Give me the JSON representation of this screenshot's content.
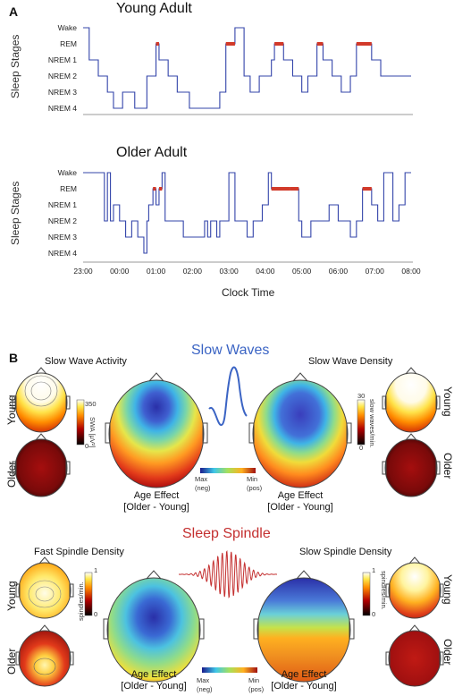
{
  "panelA": {
    "letter": "A",
    "young_title": "Young Adult",
    "older_title": "Older Adult",
    "ylabel": "Sleep Stages",
    "stages": [
      "Wake",
      "REM",
      "NREM 1",
      "NREM 2",
      "NREM 3",
      "NREM 4"
    ],
    "ticks": [
      "23:00",
      "00:00",
      "01:00",
      "02:00",
      "03:00",
      "04:00",
      "05:00",
      "06:00",
      "07:00",
      "08:00"
    ],
    "xlabel": "Clock Time",
    "hypnogram_color": "#3344aa",
    "rem_color": "#d23a2a"
  },
  "chart_data": [
    {
      "type": "line",
      "title": "Young Adult",
      "ylabel": "Sleep Stages",
      "ystates": [
        "Wake",
        "REM",
        "NREM 1",
        "NREM 2",
        "NREM 3",
        "NREM 4"
      ],
      "x": [
        "23:00",
        "23:10",
        "23:25",
        "23:40",
        "23:50",
        "00:05",
        "00:25",
        "00:45",
        "01:00",
        "01:05",
        "01:20",
        "01:35",
        "01:55",
        "02:15",
        "02:45",
        "02:55",
        "03:10",
        "03:25",
        "03:35",
        "03:50",
        "04:10",
        "04:15",
        "04:30",
        "04:45",
        "05:00",
        "05:10",
        "05:25",
        "05:35",
        "05:50",
        "06:05",
        "06:20",
        "06:30",
        "06:55",
        "07:10",
        "07:30",
        "08:00"
      ],
      "y": [
        "Wake",
        "NREM 1",
        "NREM 2",
        "NREM 3",
        "NREM 4",
        "NREM 3",
        "NREM 4",
        "NREM 2",
        "REM",
        "NREM 1",
        "NREM 2",
        "NREM 3",
        "NREM 4",
        "NREM 4",
        "NREM 3",
        "REM",
        "Wake",
        "NREM 2",
        "NREM 3",
        "NREM 2",
        "NREM 1",
        "REM",
        "NREM 1",
        "NREM 2",
        "NREM 3",
        "NREM 2",
        "REM",
        "NREM 1",
        "NREM 2",
        "NREM 3",
        "NREM 2",
        "REM",
        "NREM 1",
        "NREM 2",
        "NREM 2",
        "NREM 2"
      ]
    },
    {
      "type": "line",
      "title": "Older Adult",
      "ylabel": "Sleep Stages",
      "xlabel": "Clock Time",
      "ystates": [
        "Wake",
        "REM",
        "NREM 1",
        "NREM 2",
        "NREM 3",
        "NREM 4"
      ],
      "x": [
        "23:00",
        "23:35",
        "23:40",
        "23:45",
        "23:50",
        "00:00",
        "00:10",
        "00:20",
        "00:30",
        "00:40",
        "00:45",
        "00:48",
        "00:55",
        "01:00",
        "01:05",
        "01:10",
        "01:15",
        "01:30",
        "01:45",
        "02:20",
        "02:25",
        "02:30",
        "02:40",
        "02:45",
        "03:00",
        "03:10",
        "03:30",
        "03:40",
        "03:55",
        "04:05",
        "04:10",
        "04:40",
        "04:55",
        "05:00",
        "05:15",
        "05:30",
        "05:45",
        "06:00",
        "06:20",
        "06:30",
        "06:40",
        "06:55",
        "07:05",
        "07:15",
        "07:30",
        "07:40",
        "07:50",
        "08:00"
      ],
      "y": [
        "Wake",
        "NREM 2",
        "Wake",
        "NREM 2",
        "NREM 1",
        "NREM 2",
        "NREM 3",
        "NREM 2",
        "NREM 3",
        "NREM 4",
        "NREM 2",
        "NREM 1",
        "REM",
        "NREM 1",
        "REM",
        "Wake",
        "NREM 2",
        "NREM 2",
        "NREM 3",
        "NREM 2",
        "NREM 3",
        "NREM 2",
        "NREM 3",
        "NREM 2",
        "Wake",
        "NREM 2",
        "NREM 3",
        "NREM 2",
        "NREM 1",
        "Wake",
        "REM",
        "REM",
        "NREM 2",
        "NREM 3",
        "NREM 2",
        "NREM 2",
        "NREM 1",
        "NREM 2",
        "NREM 3",
        "NREM 2",
        "REM",
        "NREM 1",
        "NREM 2",
        "Wake",
        "NREM 2",
        "NREM 1",
        "Wake",
        "Wake"
      ]
    }
  ],
  "panelB": {
    "letter": "B",
    "slow_waves": "Slow Waves",
    "swa_title": "Slow Wave Activity",
    "swd_title": "Slow Wave Density",
    "young": "Young",
    "older": "Older",
    "swa_unit": "SWA [μV²]",
    "swa_max": "350",
    "swa_min": "0",
    "swd_unit": "slow waves/min.",
    "swd_max": "30",
    "swd_min": "0",
    "age_effect": "Age Effect",
    "older_young": "[Older - Young]",
    "max_label": "Max",
    "max_sub": "(neg)",
    "min_label": "Min",
    "min_sub": "(pos)",
    "sleep_spindle": "Sleep Spindle",
    "fast_title": "Fast Spindle Density",
    "slow_title": "Slow Spindle Density",
    "spindle_unit": "spindles/min.",
    "sp_max": "1",
    "sp_min": "0",
    "wave_blue": "#3b64c4",
    "wave_red": "#c43030"
  }
}
